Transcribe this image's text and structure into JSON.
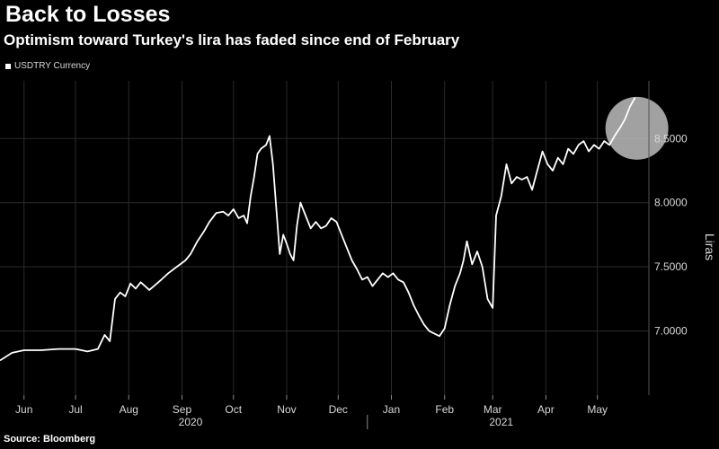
{
  "header": {
    "title": "Back to Losses",
    "subtitle": "Optimism toward Turkey's lira has faded since end of February"
  },
  "footer": {
    "source": "Source: Bloomberg"
  },
  "colors": {
    "background": "#000000",
    "line": "#ffffff",
    "grid": "#2a2a2a",
    "highlight": "#bdbdbd"
  },
  "chart_data": {
    "type": "line",
    "title": "Back to Losses",
    "subtitle": "Optimism toward Turkey's lira has faded since end of February",
    "ylabel": "Liras",
    "xlabel": "",
    "legend": {
      "entries": [
        "USDTRY Currency"
      ],
      "placement": "top-left"
    },
    "grid": true,
    "y_axis_side": "right",
    "ylim": [
      6.5,
      8.95
    ],
    "yticks": [
      7.0,
      7.5,
      8.0,
      8.5
    ],
    "ytick_labels": [
      "7.0000",
      "7.5000",
      "8.0000",
      "8.5000"
    ],
    "xlim": [
      "2020-06-01",
      "2021-06-14"
    ],
    "xticks": [
      {
        "date": "2020-06-15",
        "label": "Jun"
      },
      {
        "date": "2020-07-15",
        "label": "Jul"
      },
      {
        "date": "2020-08-15",
        "label": "Aug"
      },
      {
        "date": "2020-09-15",
        "label": "Sep"
      },
      {
        "date": "2020-10-15",
        "label": "Oct"
      },
      {
        "date": "2020-11-15",
        "label": "Nov"
      },
      {
        "date": "2020-12-15",
        "label": "Dec"
      },
      {
        "date": "2021-01-15",
        "label": "Jan"
      },
      {
        "date": "2021-02-15",
        "label": "Feb"
      },
      {
        "date": "2021-03-15",
        "label": "Mar"
      },
      {
        "date": "2021-04-15",
        "label": "Apr"
      },
      {
        "date": "2021-05-15",
        "label": "May"
      }
    ],
    "year_labels": [
      {
        "date": "2020-09-20",
        "label": "2020"
      },
      {
        "date": "2021-03-20",
        "label": "2021"
      }
    ],
    "highlight": {
      "type": "circle",
      "center": {
        "x": "2021-06-07",
        "y": 8.58
      }
    },
    "series": [
      {
        "values": [
          [
            "2020-06-01",
            6.77
          ],
          [
            "2020-06-08",
            6.83
          ],
          [
            "2020-06-15",
            6.85
          ],
          [
            "2020-06-25",
            6.85
          ],
          [
            "2020-07-05",
            6.86
          ],
          [
            "2020-07-15",
            6.86
          ],
          [
            "2020-07-22",
            6.84
          ],
          [
            "2020-07-28",
            6.86
          ],
          [
            "2020-08-01",
            6.97
          ],
          [
            "2020-08-04",
            6.92
          ],
          [
            "2020-08-07",
            7.25
          ],
          [
            "2020-08-10",
            7.3
          ],
          [
            "2020-08-13",
            7.27
          ],
          [
            "2020-08-16",
            7.37
          ],
          [
            "2020-08-19",
            7.33
          ],
          [
            "2020-08-22",
            7.38
          ],
          [
            "2020-08-27",
            7.32
          ],
          [
            "2020-09-03",
            7.4
          ],
          [
            "2020-09-07",
            7.45
          ],
          [
            "2020-09-12",
            7.5
          ],
          [
            "2020-09-17",
            7.55
          ],
          [
            "2020-09-20",
            7.6
          ],
          [
            "2020-09-24",
            7.7
          ],
          [
            "2020-09-28",
            7.78
          ],
          [
            "2020-10-01",
            7.85
          ],
          [
            "2020-10-05",
            7.92
          ],
          [
            "2020-10-09",
            7.93
          ],
          [
            "2020-10-12",
            7.9
          ],
          [
            "2020-10-15",
            7.95
          ],
          [
            "2020-10-18",
            7.88
          ],
          [
            "2020-10-21",
            7.9
          ],
          [
            "2020-10-23",
            7.84
          ],
          [
            "2020-10-25",
            8.05
          ],
          [
            "2020-10-27",
            8.2
          ],
          [
            "2020-10-29",
            8.38
          ],
          [
            "2020-10-31",
            8.42
          ],
          [
            "2020-11-03",
            8.45
          ],
          [
            "2020-11-05",
            8.52
          ],
          [
            "2020-11-07",
            8.3
          ],
          [
            "2020-11-09",
            7.95
          ],
          [
            "2020-11-11",
            7.6
          ],
          [
            "2020-11-13",
            7.75
          ],
          [
            "2020-11-15",
            7.68
          ],
          [
            "2020-11-17",
            7.6
          ],
          [
            "2020-11-19",
            7.55
          ],
          [
            "2020-11-21",
            7.82
          ],
          [
            "2020-11-23",
            8.0
          ],
          [
            "2020-11-26",
            7.9
          ],
          [
            "2020-11-29",
            7.8
          ],
          [
            "2020-12-02",
            7.85
          ],
          [
            "2020-12-05",
            7.8
          ],
          [
            "2020-12-08",
            7.82
          ],
          [
            "2020-12-11",
            7.88
          ],
          [
            "2020-12-14",
            7.85
          ],
          [
            "2020-12-17",
            7.75
          ],
          [
            "2020-12-20",
            7.65
          ],
          [
            "2020-12-23",
            7.55
          ],
          [
            "2020-12-26",
            7.48
          ],
          [
            "2020-12-29",
            7.4
          ],
          [
            "2021-01-01",
            7.42
          ],
          [
            "2021-01-04",
            7.35
          ],
          [
            "2021-01-07",
            7.4
          ],
          [
            "2021-01-10",
            7.45
          ],
          [
            "2021-01-13",
            7.42
          ],
          [
            "2021-01-16",
            7.45
          ],
          [
            "2021-01-19",
            7.4
          ],
          [
            "2021-01-22",
            7.38
          ],
          [
            "2021-01-25",
            7.3
          ],
          [
            "2021-01-28",
            7.2
          ],
          [
            "2021-01-31",
            7.12
          ],
          [
            "2021-02-03",
            7.05
          ],
          [
            "2021-02-06",
            7.0
          ],
          [
            "2021-02-09",
            6.98
          ],
          [
            "2021-02-12",
            6.96
          ],
          [
            "2021-02-15",
            7.02
          ],
          [
            "2021-02-18",
            7.2
          ],
          [
            "2021-02-21",
            7.35
          ],
          [
            "2021-02-24",
            7.45
          ],
          [
            "2021-02-26",
            7.55
          ],
          [
            "2021-02-28",
            7.7
          ],
          [
            "2021-03-03",
            7.52
          ],
          [
            "2021-03-06",
            7.62
          ],
          [
            "2021-03-09",
            7.5
          ],
          [
            "2021-03-12",
            7.25
          ],
          [
            "2021-03-15",
            7.18
          ],
          [
            "2021-03-17",
            7.9
          ],
          [
            "2021-03-20",
            8.05
          ],
          [
            "2021-03-23",
            8.3
          ],
          [
            "2021-03-26",
            8.15
          ],
          [
            "2021-03-29",
            8.2
          ],
          [
            "2021-04-01",
            8.18
          ],
          [
            "2021-04-04",
            8.2
          ],
          [
            "2021-04-07",
            8.1
          ],
          [
            "2021-04-10",
            8.25
          ],
          [
            "2021-04-13",
            8.4
          ],
          [
            "2021-04-16",
            8.3
          ],
          [
            "2021-04-19",
            8.25
          ],
          [
            "2021-04-22",
            8.35
          ],
          [
            "2021-04-25",
            8.3
          ],
          [
            "2021-04-28",
            8.42
          ],
          [
            "2021-05-01",
            8.38
          ],
          [
            "2021-05-04",
            8.45
          ],
          [
            "2021-05-07",
            8.48
          ],
          [
            "2021-05-10",
            8.4
          ],
          [
            "2021-05-13",
            8.45
          ],
          [
            "2021-05-16",
            8.42
          ],
          [
            "2021-05-19",
            8.48
          ],
          [
            "2021-05-22",
            8.45
          ],
          [
            "2021-05-25",
            8.52
          ],
          [
            "2021-05-28",
            8.58
          ],
          [
            "2021-05-31",
            8.65
          ],
          [
            "2021-06-03",
            8.75
          ],
          [
            "2021-06-06",
            8.82
          ]
        ]
      }
    ]
  }
}
